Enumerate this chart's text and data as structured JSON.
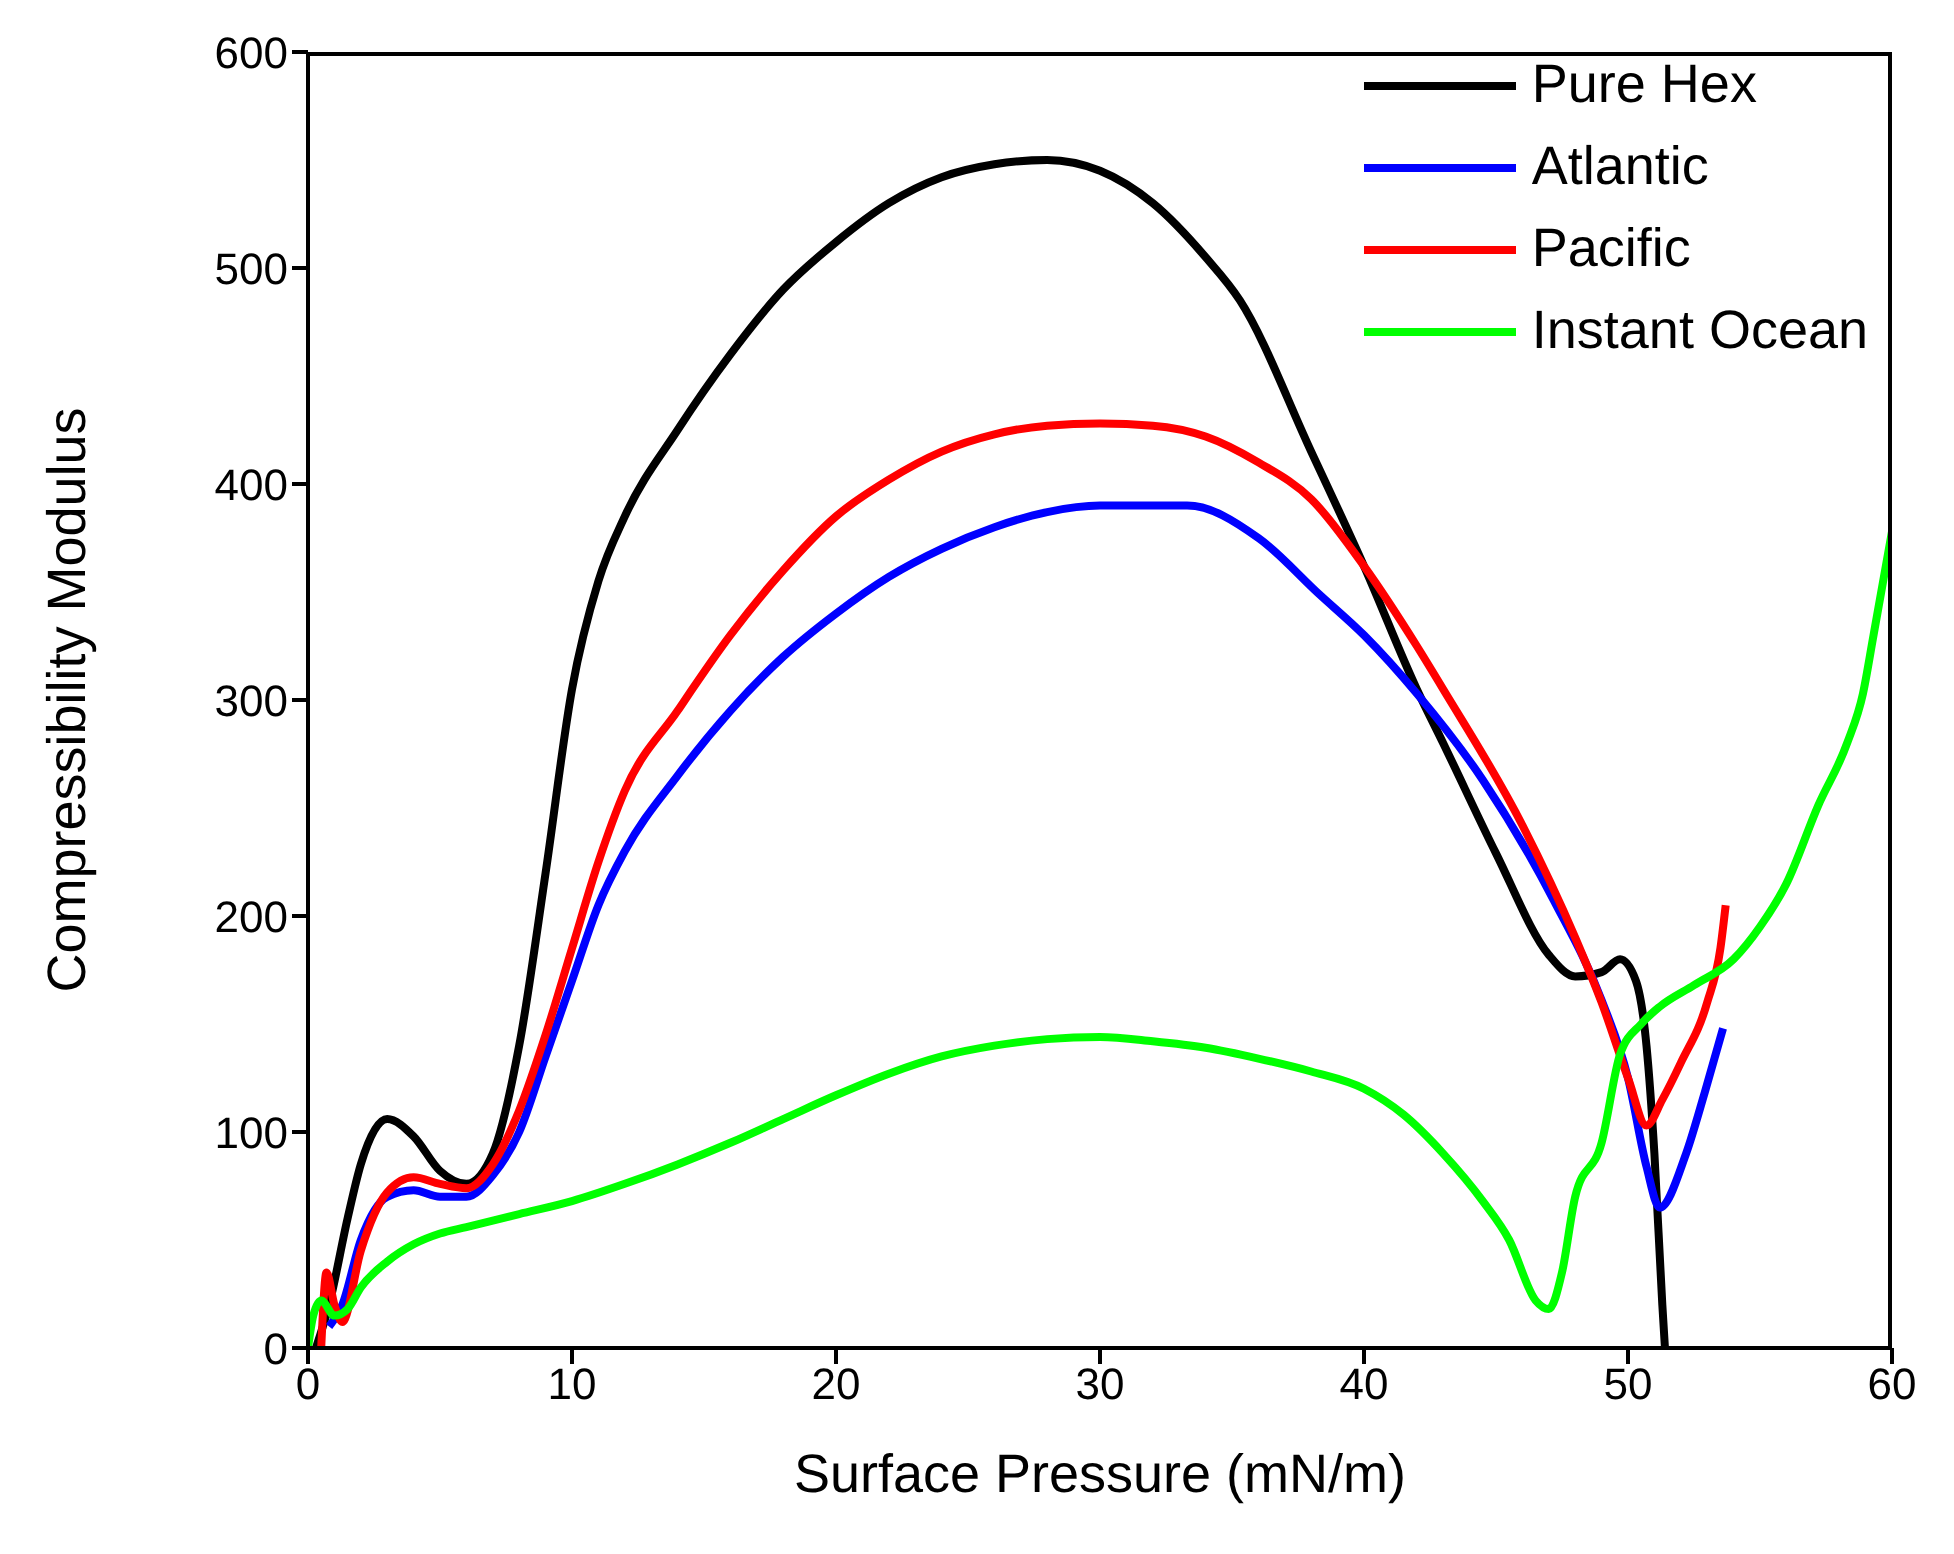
{
  "chart_data": {
    "type": "line",
    "xlabel": "Surface Pressure (mN/m)",
    "ylabel": "Compressibility Modulus",
    "xlim": [
      0,
      60
    ],
    "xticks": [
      0,
      10,
      20,
      30,
      40,
      50,
      60
    ],
    "ylim": [
      0,
      600
    ],
    "yticks": [
      0,
      100,
      200,
      300,
      400,
      500,
      600
    ],
    "grid": false,
    "legend": "top right",
    "marker": "none",
    "line_style": "solid",
    "series": [
      {
        "name": "Pure Hex",
        "color": "#000000",
        "x": [
          0.3,
          0.8,
          1.5,
          2,
          3,
          4,
          5,
          6,
          7,
          8,
          9,
          10,
          11,
          12,
          14,
          16,
          18,
          20,
          22,
          24,
          26,
          28,
          30,
          32,
          34,
          35.3,
          38,
          40,
          42,
          43,
          45,
          47,
          48,
          49,
          49.7,
          50.3,
          50.7,
          51,
          51.3,
          51.4
        ],
        "values": [
          0,
          20,
          60,
          85,
          106,
          98,
          82,
          76,
          90,
          140,
          220,
          305,
          355,
          385,
          425,
          460,
          490,
          512,
          530,
          542,
          548,
          550,
          545,
          530,
          505,
          485,
          415,
          362,
          305,
          280,
          229,
          182,
          172,
          174,
          180,
          170,
          140,
          90,
          20,
          0
        ]
      },
      {
        "name": "Atlantic",
        "color": "#0000ff",
        "x": [
          0.8,
          1.3,
          2,
          3,
          4,
          5,
          6,
          7,
          8,
          9,
          10,
          11,
          12,
          14,
          16,
          18,
          20,
          22,
          24,
          26,
          28,
          30,
          32,
          33.3,
          36,
          38.3,
          40,
          42,
          44.5,
          47.2,
          49,
          50,
          50.7,
          51.2,
          52.2,
          52.9,
          53.6
        ],
        "values": [
          10,
          20,
          50,
          70,
          73,
          70,
          70,
          80,
          100,
          135,
          170,
          205,
          230,
          265,
          295,
          320,
          340,
          357,
          370,
          380,
          387,
          390,
          390,
          390,
          375,
          349,
          330,
          303,
          263,
          207,
          161,
          125,
          84,
          65,
          90,
          118,
          148
        ]
      },
      {
        "name": "Pacific",
        "color": "#ff0000",
        "x": [
          0.5,
          0.7,
          1,
          1.3,
          2,
          3,
          4,
          5,
          6,
          7,
          8,
          9,
          10,
          11,
          12,
          14,
          16,
          18,
          20,
          22,
          24,
          26,
          28,
          30,
          32,
          34,
          36,
          38,
          40,
          42,
          43,
          46,
          48,
          49,
          50,
          50.7,
          51.3,
          52,
          53,
          53.5,
          53.7
        ],
        "values": [
          0,
          35,
          20,
          12,
          45,
          72,
          79,
          76,
          74,
          85,
          110,
          145,
          185,
          225,
          258,
          295,
          330,
          360,
          385,
          402,
          415,
          423,
          427,
          428,
          427,
          422,
          410,
          393,
          362,
          325,
          305,
          242,
          190,
          160,
          125,
          103,
          115,
          132,
          160,
          185,
          205
        ]
      },
      {
        "name": "Instant Ocean",
        "color": "#00ff00",
        "x": [
          0,
          0.2,
          0.5,
          1,
          1.5,
          2,
          3,
          4,
          5,
          6,
          8,
          10,
          12,
          14,
          16,
          18,
          20,
          22,
          24,
          26,
          28,
          30,
          32,
          34,
          36,
          38,
          40,
          41.5,
          43,
          44.5,
          45.5,
          46.5,
          47,
          47.5,
          48,
          49,
          49.7,
          50.5,
          51.2,
          52.5,
          54,
          55,
          56,
          57.2,
          58.3,
          58.9,
          59.3,
          60
        ],
        "values": [
          0,
          15,
          22,
          15,
          18,
          28,
          40,
          48,
          53,
          56,
          62,
          68,
          76,
          85,
          95,
          106,
          117,
          127,
          135,
          140,
          143,
          144,
          142,
          139,
          134,
          128,
          120,
          108,
          90,
          68,
          50,
          22,
          18,
          35,
          70,
          95,
          136,
          150,
          158,
          168,
          180,
          195,
          215,
          251,
          280,
          303,
          330,
          378
        ]
      }
    ]
  }
}
